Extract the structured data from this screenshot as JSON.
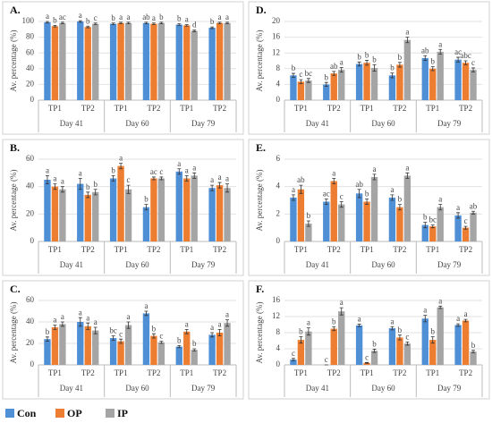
{
  "chart_data": [
    {
      "type": "bar",
      "title": "A.",
      "ylabel": "Av. percentage (%)",
      "categories": [
        "TP1",
        "TP2",
        "TP1",
        "TP2",
        "TP1",
        "TP2"
      ],
      "groups": [
        "Day 41",
        "Day 60",
        "Day 79"
      ],
      "ylim": [
        0,
        100
      ],
      "yticks": [
        0,
        20,
        40,
        60,
        80,
        100
      ],
      "grid": true,
      "series": [
        {
          "name": "Con",
          "color": "#4f8fd6",
          "values": [
            99,
            100,
            97,
            98,
            96,
            92
          ],
          "errors": [
            1,
            1,
            1,
            1,
            1,
            1
          ],
          "letters": [
            "a",
            "a",
            "b",
            "ab",
            "b",
            "b"
          ]
        },
        {
          "name": "OP",
          "color": "#ed7d31",
          "values": [
            94,
            93,
            98,
            97,
            95,
            98
          ],
          "errors": [
            1,
            1,
            1,
            1,
            1,
            1
          ],
          "letters": [
            "b",
            "b",
            "a",
            "a",
            "a",
            "a"
          ]
        },
        {
          "name": "IP",
          "color": "#a5a5a5",
          "values": [
            98,
            97,
            98,
            98,
            88,
            98
          ],
          "errors": [
            1,
            1,
            1,
            1,
            1,
            1
          ],
          "letters": [
            "ac",
            "c",
            "a",
            "b",
            "d",
            "a"
          ]
        }
      ]
    },
    {
      "type": "bar",
      "title": "D.",
      "ylabel": "Av. percentage (%)",
      "categories": [
        "TP1",
        "TP2",
        "TP1",
        "TP2",
        "TP1",
        "TP2"
      ],
      "groups": [
        "Day 41",
        "Day 60",
        "Day 79"
      ],
      "ylim": [
        0,
        20
      ],
      "yticks": [
        0,
        4,
        8,
        12,
        16,
        20
      ],
      "grid": true,
      "series": [
        {
          "name": "Con",
          "color": "#4f8fd6",
          "values": [
            6.3,
            4.0,
            9.2,
            6.3,
            10.7,
            10.3
          ],
          "errors": [
            0.5,
            0.5,
            0.5,
            0.6,
            0.6,
            0.6
          ],
          "letters": [
            "b",
            "b",
            "b",
            "b",
            "ab",
            "ac"
          ]
        },
        {
          "name": "OP",
          "color": "#ed7d31",
          "values": [
            4.7,
            6.8,
            9.5,
            9.0,
            8.0,
            9.5
          ],
          "errors": [
            0.5,
            0.5,
            0.6,
            0.6,
            0.5,
            0.5
          ],
          "letters": [
            "c",
            "ab",
            "b",
            "b",
            "b",
            "abc"
          ]
        },
        {
          "name": "IP",
          "color": "#a5a5a5",
          "values": [
            5.0,
            7.7,
            8.2,
            15.3,
            12.3,
            7.7
          ],
          "errors": [
            0.5,
            0.6,
            0.8,
            0.7,
            0.6,
            0.5
          ],
          "letters": [
            "bc",
            "a",
            "b",
            "a",
            "a",
            "c"
          ]
        }
      ]
    },
    {
      "type": "bar",
      "title": "B.",
      "ylabel": "Av. percentage (%)",
      "categories": [
        "TP1",
        "TP2",
        "TP1",
        "TP2",
        "TP1",
        "TP2"
      ],
      "groups": [
        "Day 41",
        "Day 60",
        "Day 79"
      ],
      "ylim": [
        0,
        60
      ],
      "yticks": [
        0,
        20,
        40,
        60
      ],
      "grid": true,
      "series": [
        {
          "name": "Con",
          "color": "#4f8fd6",
          "values": [
            45,
            42,
            46,
            25,
            51,
            39
          ],
          "errors": [
            3,
            4,
            2,
            2,
            2,
            2
          ],
          "letters": [
            "a",
            "a",
            "b",
            "b",
            "a",
            "a"
          ]
        },
        {
          "name": "OP",
          "color": "#ed7d31",
          "values": [
            40,
            34,
            55,
            46,
            46,
            41
          ],
          "errors": [
            2,
            2,
            2,
            1,
            2,
            2
          ],
          "letters": [
            "a",
            "b",
            "a",
            "ac",
            "a",
            "a"
          ]
        },
        {
          "name": "IP",
          "color": "#a5a5a5",
          "values": [
            38,
            36,
            38,
            46,
            48,
            39
          ],
          "errors": [
            2,
            2,
            3,
            1,
            2,
            3
          ],
          "letters": [
            "a",
            "b",
            "c",
            "c",
            "a",
            "a"
          ]
        }
      ]
    },
    {
      "type": "bar",
      "title": "E.",
      "ylabel": "Av. percentage (%)",
      "categories": [
        "TP1",
        "TP2",
        "TP1",
        "TP2",
        "TP1",
        "TP2"
      ],
      "groups": [
        "Day 41",
        "Day 60",
        "Day 79"
      ],
      "ylim": [
        0,
        6
      ],
      "yticks": [
        0,
        2,
        4,
        6
      ],
      "grid": true,
      "series": [
        {
          "name": "Con",
          "color": "#4f8fd6",
          "values": [
            3.2,
            2.9,
            3.5,
            3.2,
            1.2,
            1.9
          ],
          "errors": [
            0.2,
            0.2,
            0.3,
            0.2,
            0.2,
            0.2
          ],
          "letters": [
            "a",
            "ac",
            "ab",
            "a",
            "b",
            "a"
          ]
        },
        {
          "name": "OP",
          "color": "#ed7d31",
          "values": [
            3.8,
            4.4,
            2.9,
            2.5,
            1.1,
            1.0
          ],
          "errors": [
            0.3,
            0.2,
            0.2,
            0.2,
            0.1,
            0.1
          ],
          "letters": [
            "ab",
            "a",
            "b",
            "b",
            "bc",
            "c"
          ]
        },
        {
          "name": "IP",
          "color": "#a5a5a5",
          "values": [
            1.3,
            2.7,
            4.7,
            4.8,
            2.5,
            2.1
          ],
          "errors": [
            0.2,
            0.2,
            0.2,
            0.2,
            0.2,
            0.1
          ],
          "letters": [
            "b",
            "c",
            "a",
            "a",
            "a",
            "ab"
          ]
        }
      ]
    },
    {
      "type": "bar",
      "title": "C.",
      "ylabel": "Av. percentage (%)",
      "categories": [
        "TP1",
        "TP2",
        "TP1",
        "TP2",
        "TP1",
        "TP2"
      ],
      "groups": [
        "Day 41",
        "Day 60",
        "Day 79"
      ],
      "ylim": [
        0,
        60
      ],
      "yticks": [
        0,
        20,
        40,
        60
      ],
      "grid": true,
      "series": [
        {
          "name": "Con",
          "color": "#4f8fd6",
          "values": [
            24,
            40,
            25,
            48,
            17,
            28
          ],
          "errors": [
            2,
            4,
            2,
            2,
            1,
            2
          ],
          "letters": [
            "b",
            "a",
            "bc",
            "a",
            "b",
            "a"
          ]
        },
        {
          "name": "OP",
          "color": "#ed7d31",
          "values": [
            35,
            36,
            22,
            27,
            31,
            30
          ],
          "errors": [
            2,
            3,
            2,
            2,
            2,
            3
          ],
          "letters": [
            "a",
            "a",
            "c",
            "b",
            "a",
            "a"
          ]
        },
        {
          "name": "IP",
          "color": "#a5a5a5",
          "values": [
            38,
            32,
            37,
            21,
            14,
            39
          ],
          "errors": [
            2,
            3,
            3,
            1,
            1,
            3
          ],
          "letters": [
            "a",
            "a",
            "a",
            "c",
            "b",
            "a"
          ]
        }
      ]
    },
    {
      "type": "bar",
      "title": "F.",
      "ylabel": "Av. percentage (%)",
      "categories": [
        "TP1",
        "TP2",
        "TP1",
        "TP2",
        "TP1",
        "TP2"
      ],
      "groups": [
        "Day 41",
        "Day 60",
        "Day 79"
      ],
      "ylim": [
        0,
        16
      ],
      "yticks": [
        0,
        4,
        8,
        12,
        16
      ],
      "grid": true,
      "series": [
        {
          "name": "Con",
          "color": "#4f8fd6",
          "values": [
            1.3,
            0,
            9.8,
            9.1,
            11.5,
            9.9
          ],
          "errors": [
            0.3,
            0,
            0.3,
            0.4,
            0.8,
            0.3
          ],
          "letters": [
            "c",
            "c",
            "a",
            "a",
            "a",
            "a"
          ]
        },
        {
          "name": "OP",
          "color": "#ed7d31",
          "values": [
            6.2,
            9.0,
            0.5,
            6.8,
            6.2,
            11.0
          ],
          "errors": [
            0.8,
            0.5,
            0.1,
            0.6,
            0.8,
            0.3
          ],
          "letters": [
            "b",
            "b",
            "c",
            "b",
            "b",
            "a"
          ]
        },
        {
          "name": "IP",
          "color": "#a5a5a5",
          "values": [
            8.3,
            13.3,
            3.5,
            5.3,
            14.3,
            3.3
          ],
          "errors": [
            0.9,
            0.9,
            0.4,
            0.4,
            0.3,
            0.3
          ],
          "letters": [
            "a",
            "a",
            "b",
            "c",
            "a",
            "b"
          ]
        }
      ]
    }
  ]
}
